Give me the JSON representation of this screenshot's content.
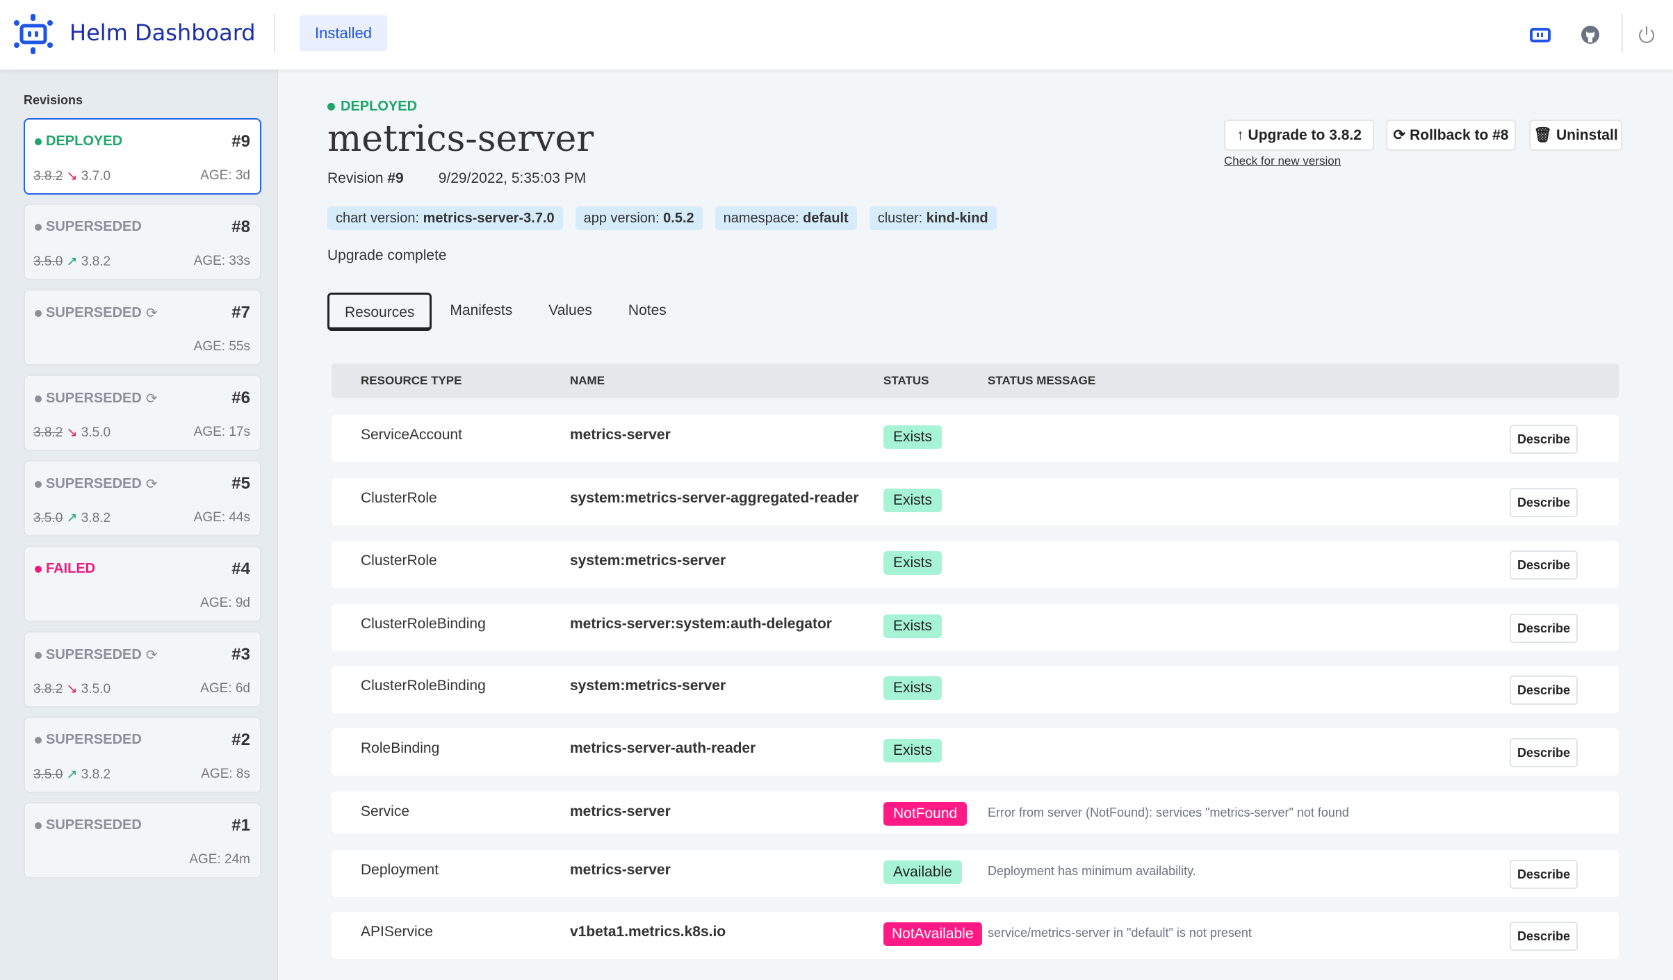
{
  "header": {
    "brand": "Helm Dashboard",
    "tab": "Installed"
  },
  "sidebar": {
    "title": "Revisions",
    "revisions": [
      {
        "status": "DEPLOYED",
        "num": "#9",
        "from": "3.8.2",
        "dir": "down",
        "to": "3.7.0",
        "age": "AGE: 3d",
        "color": "#1ea66a",
        "selected": true
      },
      {
        "status": "SUPERSEDED",
        "num": "#8",
        "from": "3.5.0",
        "dir": "up",
        "to": "3.8.2",
        "age": "AGE: 33s",
        "color": "#8a8f98"
      },
      {
        "status": "SUPERSEDED",
        "num": "#7",
        "age": "AGE: 55s",
        "color": "#8a8f98",
        "refresh": true
      },
      {
        "status": "SUPERSEDED",
        "num": "#6",
        "from": "3.8.2",
        "dir": "down",
        "to": "3.5.0",
        "age": "AGE: 17s",
        "color": "#8a8f98",
        "refresh": true
      },
      {
        "status": "SUPERSEDED",
        "num": "#5",
        "from": "3.5.0",
        "dir": "up",
        "to": "3.8.2",
        "age": "AGE: 44s",
        "color": "#8a8f98",
        "refresh": true
      },
      {
        "status": "FAILED",
        "num": "#4",
        "age": "AGE: 9d",
        "color": "#ee1a7e"
      },
      {
        "status": "SUPERSEDED",
        "num": "#3",
        "from": "3.8.2",
        "dir": "down",
        "to": "3.5.0",
        "age": "AGE: 6d",
        "color": "#8a8f98",
        "refresh": true
      },
      {
        "status": "SUPERSEDED",
        "num": "#2",
        "from": "3.5.0",
        "dir": "up",
        "to": "3.8.2",
        "age": "AGE: 8s",
        "color": "#8a8f98"
      },
      {
        "status": "SUPERSEDED",
        "num": "#1",
        "age": "AGE: 24m",
        "color": "#8a8f98"
      }
    ]
  },
  "release": {
    "status": "DEPLOYED",
    "name": "metrics-server",
    "revision_label": "Revision ",
    "revision": "#9",
    "date": "9/29/2022, 5:35:03 PM",
    "badges": [
      {
        "k": "chart version: ",
        "v": "metrics-server-3.7.0"
      },
      {
        "k": "app version: ",
        "v": "0.5.2"
      },
      {
        "k": "namespace: ",
        "v": "default"
      },
      {
        "k": "cluster: ",
        "v": "kind-kind"
      }
    ],
    "message": "Upgrade complete"
  },
  "actions": {
    "upgrade": "Upgrade to 3.8.2",
    "rollback": "Rollback to #8",
    "uninstall": "Uninstall",
    "check": "Check for new version"
  },
  "tabs": [
    "Resources",
    "Manifests",
    "Values",
    "Notes"
  ],
  "table": {
    "headers": [
      "RESOURCE TYPE",
      "NAME",
      "STATUS",
      "STATUS MESSAGE"
    ],
    "describe": "Describe",
    "rows": [
      {
        "type": "ServiceAccount",
        "name": "metrics-server",
        "status": "Exists",
        "ok": true,
        "msg": "",
        "describe": true
      },
      {
        "type": "ClusterRole",
        "name": "system:metrics-server-aggregated-reader",
        "status": "Exists",
        "ok": true,
        "msg": "",
        "describe": true
      },
      {
        "type": "ClusterRole",
        "name": "system:metrics-server",
        "status": "Exists",
        "ok": true,
        "msg": "",
        "describe": true
      },
      {
        "type": "ClusterRoleBinding",
        "name": "metrics-server:system:auth-delegator",
        "status": "Exists",
        "ok": true,
        "msg": "",
        "describe": true
      },
      {
        "type": "ClusterRoleBinding",
        "name": "system:metrics-server",
        "status": "Exists",
        "ok": true,
        "msg": "",
        "describe": true
      },
      {
        "type": "RoleBinding",
        "name": "metrics-server-auth-reader",
        "status": "Exists",
        "ok": true,
        "msg": "",
        "describe": true
      },
      {
        "type": "Service",
        "name": "metrics-server",
        "status": "NotFound",
        "ok": false,
        "msg": "Error from server (NotFound): services \"metrics-server\" not found",
        "describe": false
      },
      {
        "type": "Deployment",
        "name": "metrics-server",
        "status": "Available",
        "ok": true,
        "msg": "Deployment has minimum availability.",
        "describe": true
      },
      {
        "type": "APIService",
        "name": "v1beta1.metrics.k8s.io",
        "status": "NotAvailable",
        "ok": false,
        "msg": "service/metrics-server in \"default\" is not present",
        "describe": true
      }
    ]
  },
  "colors": {
    "ok_bg": "#a7f3d6",
    "err_bg": "#ff1a86",
    "accent": "#1e55e6",
    "deployed": "#1ea66a"
  }
}
